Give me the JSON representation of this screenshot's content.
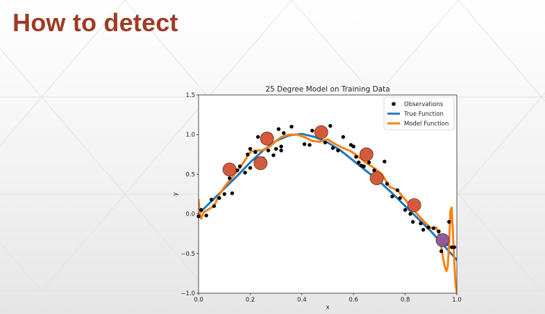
{
  "slide": {
    "title": "How to detect"
  },
  "colors": {
    "title": "#9e3b25",
    "observation": "#000000",
    "true_function": "#1f77b4",
    "model_function": "#ff7f0e",
    "highlight_red": "#d45a3c",
    "highlight_purple": "#8e5c9e"
  },
  "chart_data": {
    "type": "line",
    "title": "25 Degree Model on Training Data",
    "xlabel": "x",
    "ylabel": "y",
    "xlim": [
      0.0,
      1.0
    ],
    "ylim": [
      -1.0,
      1.5
    ],
    "x_ticks": [
      "0.0",
      "0.2",
      "0.4",
      "0.6",
      "0.8",
      "1.0"
    ],
    "y_ticks": [
      "−1.0",
      "−0.5",
      "0.0",
      "0.5",
      "1.0",
      "1.5"
    ],
    "x_tick_values": [
      0.0,
      0.2,
      0.4,
      0.6,
      0.8,
      1.0
    ],
    "y_tick_values": [
      -1.0,
      -0.5,
      0.0,
      0.5,
      1.0,
      1.5
    ],
    "grid": false,
    "legend_position": "top-right",
    "legend": [
      "Observations",
      "True Function",
      "Model Function"
    ],
    "observations": [
      [
        0.0,
        -0.03
      ],
      [
        0.01,
        0.05
      ],
      [
        0.03,
        -0.02
      ],
      [
        0.05,
        0.18
      ],
      [
        0.06,
        0.1
      ],
      [
        0.08,
        0.2
      ],
      [
        0.1,
        0.25
      ],
      [
        0.12,
        0.45
      ],
      [
        0.13,
        0.26
      ],
      [
        0.15,
        0.55
      ],
      [
        0.16,
        0.6
      ],
      [
        0.18,
        0.52
      ],
      [
        0.19,
        0.75
      ],
      [
        0.2,
        0.82
      ],
      [
        0.2,
        0.58
      ],
      [
        0.22,
        0.78
      ],
      [
        0.23,
        0.97
      ],
      [
        0.24,
        0.65
      ],
      [
        0.25,
        0.7
      ],
      [
        0.26,
        0.9
      ],
      [
        0.27,
        0.8
      ],
      [
        0.28,
        0.92
      ],
      [
        0.29,
        0.74
      ],
      [
        0.3,
        0.82
      ],
      [
        0.31,
        1.07
      ],
      [
        0.32,
        0.85
      ],
      [
        0.32,
        0.8
      ],
      [
        0.33,
        1.02
      ],
      [
        0.36,
        1.1
      ],
      [
        0.41,
        0.88
      ],
      [
        0.43,
        0.87
      ],
      [
        0.44,
        1.05
      ],
      [
        0.47,
        1.03
      ],
      [
        0.49,
        0.9
      ],
      [
        0.51,
        1.11
      ],
      [
        0.52,
        0.83
      ],
      [
        0.54,
        0.8
      ],
      [
        0.56,
        0.97
      ],
      [
        0.59,
        0.87
      ],
      [
        0.6,
        0.85
      ],
      [
        0.61,
        0.72
      ],
      [
        0.62,
        0.65
      ],
      [
        0.63,
        0.61
      ],
      [
        0.64,
        0.6
      ],
      [
        0.66,
        0.65
      ],
      [
        0.68,
        0.55
      ],
      [
        0.7,
        0.48
      ],
      [
        0.72,
        0.66
      ],
      [
        0.73,
        0.38
      ],
      [
        0.75,
        0.22
      ],
      [
        0.77,
        0.3
      ],
      [
        0.78,
        0.2
      ],
      [
        0.8,
        0.05
      ],
      [
        0.82,
        0.0
      ],
      [
        0.83,
        -0.1
      ],
      [
        0.86,
        -0.12
      ],
      [
        0.87,
        -0.2
      ],
      [
        0.89,
        -0.17
      ],
      [
        0.91,
        -0.18
      ],
      [
        0.93,
        -0.22
      ],
      [
        0.94,
        -0.47
      ],
      [
        0.96,
        -0.38
      ],
      [
        0.97,
        -0.1
      ],
      [
        0.98,
        -0.42
      ],
      [
        0.99,
        -0.42
      ]
    ],
    "highlighted_points": [
      {
        "x": 0.12,
        "y": 0.56,
        "color": "red"
      },
      {
        "x": 0.24,
        "y": 0.64,
        "color": "red"
      },
      {
        "x": 0.265,
        "y": 0.95,
        "color": "red"
      },
      {
        "x": 0.475,
        "y": 1.03,
        "color": "red"
      },
      {
        "x": 0.65,
        "y": 0.75,
        "color": "red"
      },
      {
        "x": 0.69,
        "y": 0.45,
        "color": "red"
      },
      {
        "x": 0.835,
        "y": 0.11,
        "color": "red"
      },
      {
        "x": 0.945,
        "y": -0.33,
        "color": "purple"
      }
    ],
    "series": [
      {
        "name": "True Function",
        "x": [
          0.0,
          0.05,
          0.1,
          0.15,
          0.2,
          0.25,
          0.3,
          0.35,
          0.4,
          0.45,
          0.5,
          0.55,
          0.6,
          0.65,
          0.7,
          0.75,
          0.8,
          0.85,
          0.9,
          0.95,
          1.0
        ],
        "y": [
          0.0,
          0.16,
          0.32,
          0.48,
          0.65,
          0.8,
          0.92,
          0.99,
          1.01,
          0.97,
          0.9,
          0.8,
          0.67,
          0.54,
          0.41,
          0.26,
          0.1,
          -0.06,
          -0.22,
          -0.4,
          -0.58
        ]
      },
      {
        "name": "Model Function",
        "x": [
          0.0,
          0.005,
          0.01,
          0.02,
          0.04,
          0.06,
          0.08,
          0.1,
          0.12,
          0.14,
          0.16,
          0.18,
          0.2,
          0.22,
          0.24,
          0.26,
          0.28,
          0.3,
          0.32,
          0.35,
          0.38,
          0.41,
          0.44,
          0.47,
          0.5,
          0.53,
          0.56,
          0.59,
          0.62,
          0.65,
          0.68,
          0.71,
          0.74,
          0.77,
          0.8,
          0.83,
          0.86,
          0.88,
          0.9,
          0.92,
          0.93,
          0.94,
          0.95,
          0.955,
          0.96,
          0.965,
          0.97,
          0.975,
          0.98,
          0.985,
          0.99,
          0.995,
          1.0
        ],
        "y": [
          0.18,
          0.0,
          -0.06,
          0.02,
          0.06,
          0.1,
          0.24,
          0.34,
          0.42,
          0.5,
          0.58,
          0.68,
          0.78,
          0.8,
          0.8,
          0.82,
          0.86,
          0.92,
          0.97,
          1.0,
          1.0,
          0.97,
          0.92,
          0.91,
          0.94,
          0.88,
          0.83,
          0.79,
          0.72,
          0.64,
          0.58,
          0.5,
          0.34,
          0.3,
          0.18,
          0.06,
          -0.05,
          -0.12,
          -0.18,
          -0.17,
          -0.25,
          -0.42,
          -0.62,
          -0.68,
          -0.72,
          -0.66,
          -0.38,
          0.04,
          0.08,
          -0.25,
          -0.6,
          -0.88,
          -1.0
        ]
      }
    ]
  }
}
